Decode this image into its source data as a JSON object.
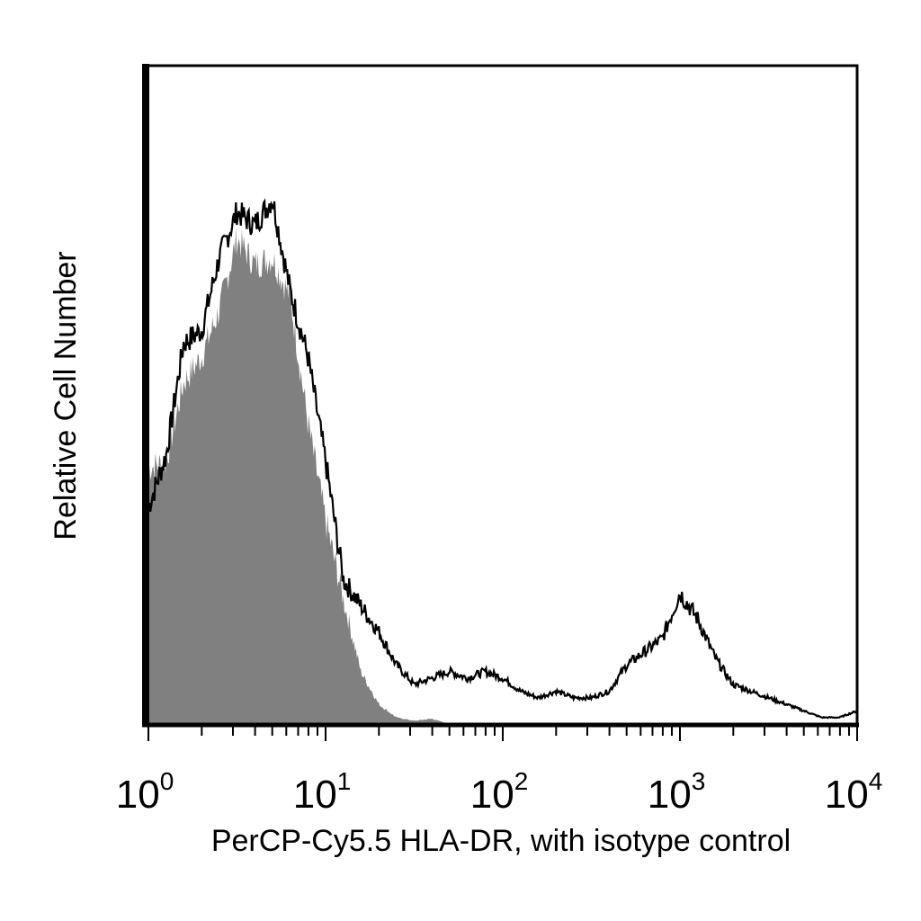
{
  "chart_data": {
    "type": "area",
    "title": "",
    "xlabel": "PerCP-Cy5.5 HLA-DR, with isotype control",
    "ylabel": "Relative Cell Number",
    "x_scale": "log",
    "xlim": [
      1,
      10000
    ],
    "ylim": [
      0,
      1.0
    ],
    "grid": false,
    "legend": "none",
    "x_ticks": [
      {
        "base": "10",
        "exp": "0",
        "value": 1
      },
      {
        "base": "10",
        "exp": "1",
        "value": 10
      },
      {
        "base": "10",
        "exp": "2",
        "value": 100
      },
      {
        "base": "10",
        "exp": "3",
        "value": 1000
      },
      {
        "base": "10",
        "exp": "4",
        "value": 10000
      }
    ],
    "series": [
      {
        "style": "filled",
        "color": "#808080",
        "x": [
          1.0,
          1.26,
          1.58,
          2.0,
          2.51,
          3.16,
          3.98,
          5.01,
          6.31,
          7.94,
          10.0,
          12.6,
          15.8,
          20.0,
          25.1,
          31.6,
          39.8,
          50.1,
          63.1,
          100,
          1000,
          10000
        ],
        "y": [
          0.39,
          0.4,
          0.52,
          0.56,
          0.63,
          0.74,
          0.7,
          0.71,
          0.65,
          0.46,
          0.31,
          0.19,
          0.08,
          0.03,
          0.01,
          0.005,
          0.008,
          0.0,
          0.0,
          0.0,
          0.0,
          0.0
        ]
      },
      {
        "style": "outline",
        "color": "#000000",
        "x": [
          1.0,
          1.26,
          1.58,
          2.0,
          2.51,
          3.16,
          3.98,
          5.01,
          6.31,
          7.94,
          10.0,
          12.6,
          15.8,
          20.0,
          25.1,
          31.6,
          39.8,
          50.1,
          63.1,
          79.4,
          100,
          126,
          158,
          200,
          251,
          316,
          398,
          501,
          631,
          794,
          1000,
          1259,
          1585,
          1995,
          2512,
          3162,
          3981,
          5012,
          6310,
          7943,
          10000
        ],
        "y": [
          0.33,
          0.41,
          0.58,
          0.6,
          0.71,
          0.78,
          0.76,
          0.8,
          0.66,
          0.56,
          0.4,
          0.22,
          0.18,
          0.14,
          0.09,
          0.06,
          0.07,
          0.08,
          0.07,
          0.08,
          0.07,
          0.05,
          0.04,
          0.05,
          0.04,
          0.04,
          0.05,
          0.09,
          0.11,
          0.13,
          0.2,
          0.16,
          0.1,
          0.06,
          0.05,
          0.04,
          0.03,
          0.02,
          0.01,
          0.01,
          0.02
        ]
      }
    ]
  }
}
